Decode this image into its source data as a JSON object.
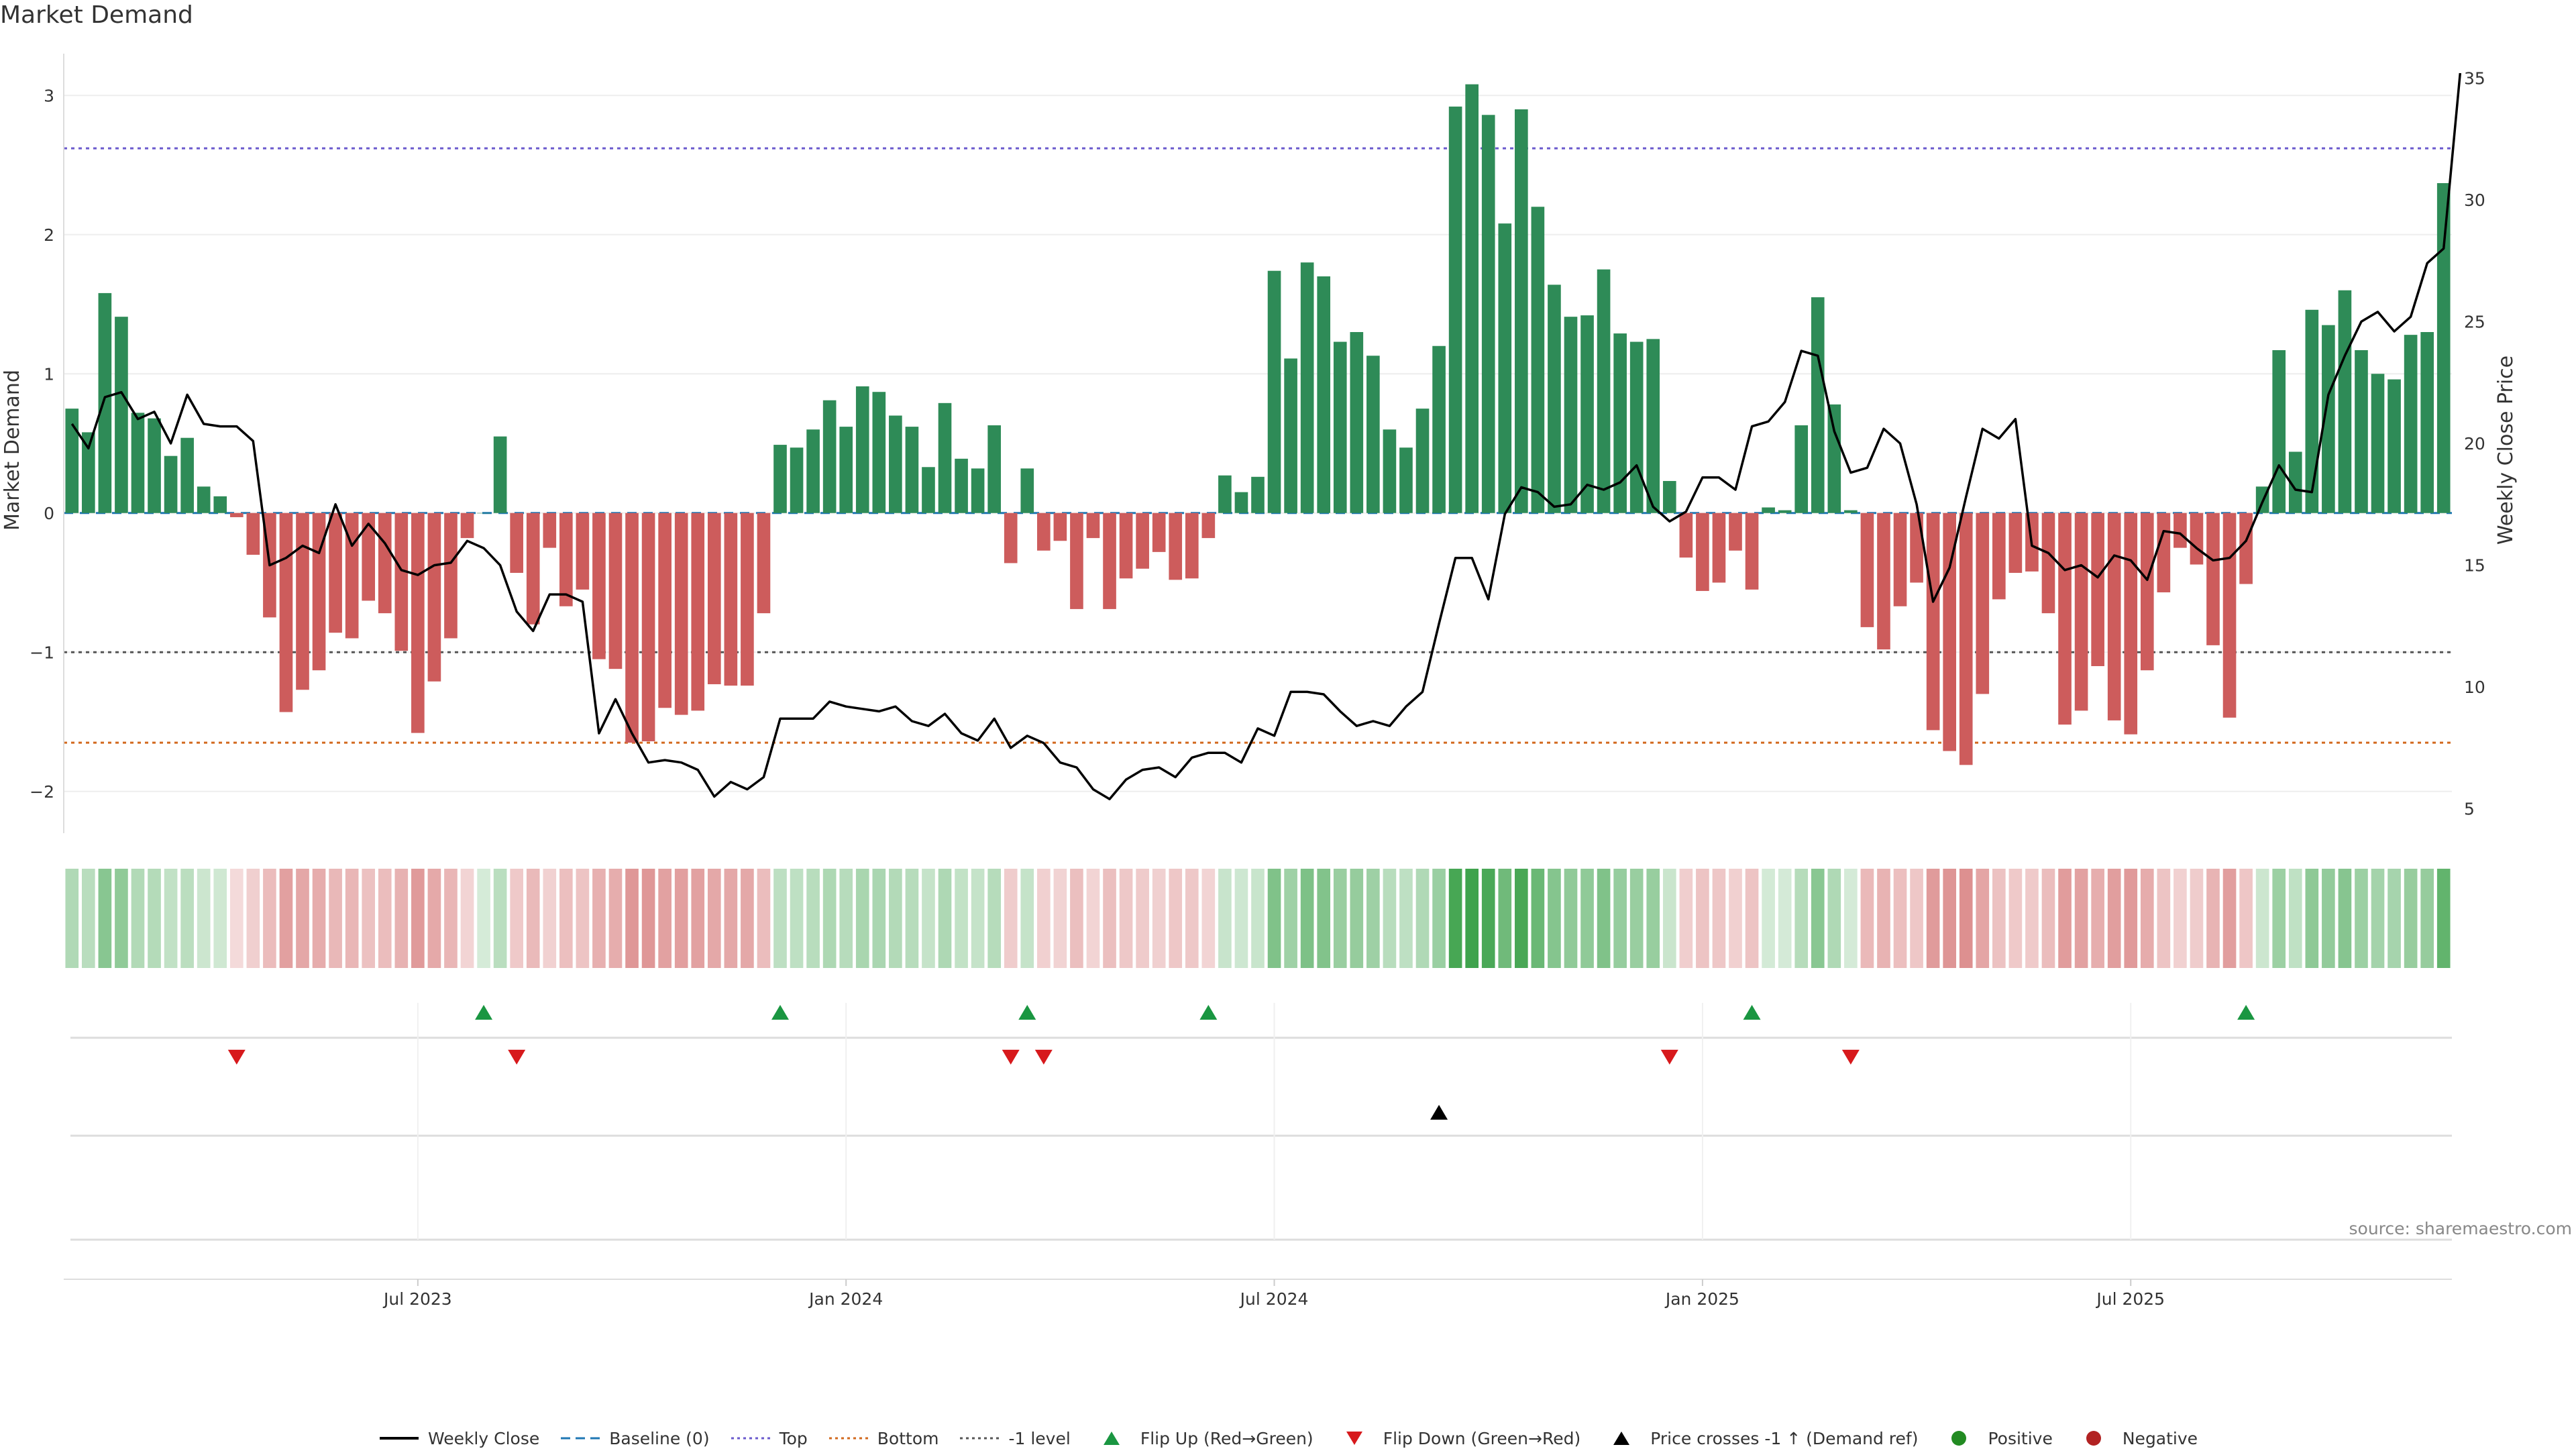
{
  "title": "Market Demand",
  "source": "source: sharemaestro.com",
  "colors": {
    "positive_bar": "#2e8b57",
    "negative_bar": "#cd5c5c",
    "close_line": "#000000",
    "top_line": "#6a5acd",
    "bottom_line": "#d2691e",
    "minus1_line": "#555555",
    "baseline": "#1f77b4",
    "flip_up": "#1a9641",
    "flip_down": "#d7191c",
    "price_cross": "#000000",
    "positive_dot": "#228b22",
    "negative_dot": "#b22222"
  },
  "legend": [
    {
      "label": "Weekly Close",
      "icon": "line-solid",
      "color": "#000000"
    },
    {
      "label": "Baseline (0)",
      "icon": "line-dashed",
      "color": "#1f77b4"
    },
    {
      "label": "Top",
      "icon": "line-dotted",
      "color": "#6a5acd"
    },
    {
      "label": "Bottom",
      "icon": "line-dotted",
      "color": "#d2691e"
    },
    {
      "label": "-1 level",
      "icon": "line-dotted",
      "color": "#555555"
    },
    {
      "label": "Flip Up (Red→Green)",
      "icon": "triangle-up",
      "color": "#1a9641"
    },
    {
      "label": "Flip Down (Green→Red)",
      "icon": "triangle-down",
      "color": "#d7191c"
    },
    {
      "label": "Price crosses -1 ↑ (Demand ref)",
      "icon": "triangle-up",
      "color": "#000000"
    },
    {
      "label": "Positive",
      "icon": "dot",
      "color": "#228b22"
    },
    {
      "label": "Negative",
      "icon": "dot",
      "color": "#b22222"
    }
  ],
  "chart_data": {
    "type": "bar",
    "ylabel": "Market Demand",
    "y2label": "Weekly Close Price",
    "ylim": [
      -2.3,
      3.3
    ],
    "y2lim": [
      4,
      36
    ],
    "yticks": [
      {
        "value": 3,
        "label": "3"
      },
      {
        "value": 2,
        "label": "2"
      },
      {
        "value": 1,
        "label": "1"
      },
      {
        "value": 0,
        "label": "0"
      },
      {
        "value": -1,
        "label": "−1"
      },
      {
        "value": -2,
        "label": "−2"
      }
    ],
    "y2ticks": [
      {
        "value": 35,
        "label": "35"
      },
      {
        "value": 30,
        "label": "30"
      },
      {
        "value": 25,
        "label": "25"
      },
      {
        "value": 20,
        "label": "20"
      },
      {
        "value": 15,
        "label": "15"
      },
      {
        "value": 10,
        "label": "10"
      },
      {
        "value": 5,
        "label": "5"
      }
    ],
    "xticks": [
      {
        "index": 21.5,
        "label": "Jul 2023"
      },
      {
        "index": 47.5,
        "label": "Jan 2024"
      },
      {
        "index": 73.5,
        "label": "Jul 2024"
      },
      {
        "index": 99.5,
        "label": "Jan 2025"
      },
      {
        "index": 125.5,
        "label": "Jul 2025"
      }
    ],
    "top_level": 2.62,
    "bottom_level": -1.65,
    "minus1_level": -1,
    "demand": [
      0.75,
      0.58,
      1.58,
      1.41,
      0.72,
      0.68,
      0.41,
      0.54,
      0.19,
      0.12,
      -0.03,
      -0.3,
      -0.75,
      -1.43,
      -1.27,
      -1.13,
      -0.86,
      -0.9,
      -0.63,
      -0.72,
      -0.99,
      -1.58,
      -1.21,
      -0.9,
      -0.18,
      0.0,
      0.55,
      -0.43,
      -0.8,
      -0.25,
      -0.67,
      -0.55,
      -1.05,
      -1.12,
      -1.65,
      -1.64,
      -1.4,
      -1.45,
      -1.42,
      -1.23,
      -1.24,
      -1.24,
      -0.72,
      0.49,
      0.47,
      0.6,
      0.81,
      0.62,
      0.91,
      0.87,
      0.7,
      0.62,
      0.33,
      0.79,
      0.39,
      0.32,
      0.63,
      -0.36,
      0.32,
      -0.27,
      -0.2,
      -0.69,
      -0.18,
      -0.69,
      -0.47,
      -0.4,
      -0.28,
      -0.48,
      -0.47,
      -0.18,
      0.27,
      0.15,
      0.26,
      1.74,
      1.11,
      1.8,
      1.7,
      1.23,
      1.3,
      1.13,
      0.6,
      0.47,
      0.75,
      1.2,
      2.92,
      3.08,
      2.86,
      2.08,
      2.9,
      2.2,
      1.64,
      1.41,
      1.42,
      1.75,
      1.29,
      1.23,
      1.25,
      0.23,
      -0.32,
      -0.56,
      -0.5,
      -0.27,
      -0.55,
      0.04,
      0.02,
      0.63,
      1.55,
      0.78,
      0.02,
      -0.82,
      -0.98,
      -0.67,
      -0.5,
      -1.56,
      -1.71,
      -1.81,
      -1.3,
      -0.62,
      -0.43,
      -0.42,
      -0.72,
      -1.52,
      -1.42,
      -1.1,
      -1.49,
      -1.59,
      -1.13,
      -0.57,
      -0.25,
      -0.37,
      -0.95,
      -1.47,
      -0.51,
      0.19,
      1.17,
      0.44,
      1.46,
      1.35,
      1.6,
      1.17,
      1.0,
      0.96,
      1.28,
      1.3,
      2.37
    ],
    "close": [
      20.8,
      19.8,
      21.9,
      22.1,
      21.0,
      21.3,
      20.0,
      22.0,
      20.8,
      20.7,
      20.7,
      20.1,
      15.0,
      15.3,
      15.8,
      15.5,
      17.5,
      15.8,
      16.7,
      15.9,
      14.8,
      14.6,
      15.0,
      15.1,
      16.0,
      15.7,
      15.0,
      13.1,
      12.3,
      13.8,
      13.8,
      13.5,
      8.1,
      9.5,
      8.1,
      6.9,
      7.0,
      6.9,
      6.6,
      5.5,
      6.1,
      5.8,
      6.3,
      8.7,
      8.7,
      8.7,
      9.4,
      9.2,
      9.1,
      9.0,
      9.2,
      8.6,
      8.4,
      8.9,
      8.1,
      7.8,
      8.7,
      7.5,
      8.0,
      7.7,
      6.9,
      6.7,
      5.8,
      5.4,
      6.2,
      6.6,
      6.7,
      6.3,
      7.1,
      7.3,
      7.3,
      6.9,
      8.3,
      8.0,
      9.8,
      9.8,
      9.7,
      9.0,
      8.4,
      8.6,
      8.4,
      9.2,
      9.8,
      12.6,
      15.3,
      15.3,
      13.6,
      17.1,
      18.2,
      18.0,
      17.4,
      17.5,
      18.3,
      18.1,
      18.4,
      19.1,
      17.4,
      16.8,
      17.2,
      18.6,
      18.6,
      18.1,
      20.7,
      20.9,
      21.7,
      23.8,
      23.6,
      20.5,
      18.8,
      19.0,
      20.6,
      20.0,
      17.5,
      13.5,
      14.9,
      17.8,
      20.6,
      20.2,
      21.0,
      15.8,
      15.5,
      14.8,
      15.0,
      14.5,
      15.4,
      15.2,
      14.4,
      16.4,
      16.3,
      15.7,
      15.2,
      15.3,
      16.0,
      17.6,
      19.1,
      18.1,
      18.0,
      22.0,
      23.6,
      25.0,
      25.4,
      24.6,
      25.2,
      27.4,
      28.0,
      35.2
    ],
    "flip_up_indices": [
      25,
      43,
      58,
      69,
      102,
      132
    ],
    "flip_down_indices": [
      10,
      27,
      57,
      59,
      97,
      108
    ],
    "price_cross_indices": [
      83
    ]
  }
}
